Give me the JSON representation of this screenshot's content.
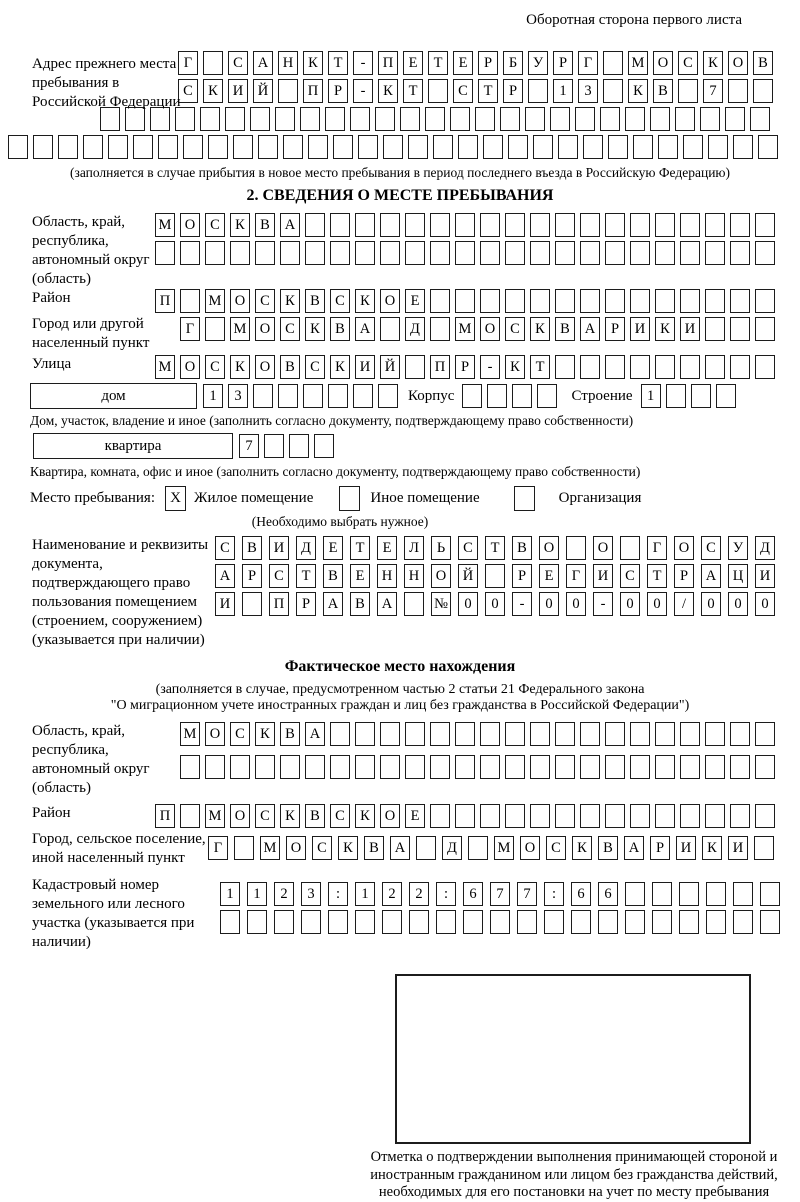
{
  "header": {
    "title": "Оборотная сторона первого листа"
  },
  "prev_address": {
    "label": "Адрес прежнего места пребывания в Российской Федерации",
    "row1": "Г САНКТ-ПЕТЕРБУРГ МОСКОВ",
    "row2": "СКИЙ ПР-КТ СТР 13 КВ 7  ",
    "row3": 27,
    "row4": 31,
    "note": "(заполняется в случае прибытия в новое место пребывания в период последнего въезда в Российскую Федерацию)"
  },
  "section2": {
    "title": "2. СВЕДЕНИЯ О МЕСТЕ ПРЕБЫВАНИЯ",
    "region": {
      "label": "Область, край, республика, автономный округ (область)",
      "row1": "МОСКВА                   ",
      "row2": 25
    },
    "district": {
      "label": "Район",
      "row": "П МОСКВСКОЕ              "
    },
    "city": {
      "label": "Город или другой населенный пункт",
      "row": "Г МОСКВА Д МОСКВАРИКИ   "
    },
    "street": {
      "label": "Улица",
      "row": "МОСКОВСКИЙ ПР-КТ         "
    },
    "house": {
      "box_label": "дом",
      "cells": "13      ",
      "korpus_label": "Корпус",
      "korpus_cells": 4,
      "stroenie_label": "Строение",
      "stroenie_cells": "1   "
    },
    "house_note": "Дом, участок, владение и иное (заполнить согласно документу, подтверждающему право собственности)",
    "apartment": {
      "box_label": "квартира",
      "cells": "7   "
    },
    "apartment_note": "Квартира, комната, офис и иное (заполнить согласно документу, подтверждающему право собственности)",
    "stay_type": {
      "label": "Место пребывания:",
      "options": [
        {
          "label": "Жилое помещение",
          "mark": "X"
        },
        {
          "label": "Иное помещение",
          "mark": ""
        },
        {
          "label": "Организация",
          "mark": ""
        }
      ],
      "note": "(Необходимо выбрать нужное)"
    },
    "doc": {
      "label": "Наименование и реквизиты документа, подтверждающего право пользования помещением (строением, сооружением) (указывается при наличии)",
      "row1": "СВИДЕТЕЛЬСТВО О ГОСУД",
      "row2": "АРСТВЕННОЙ РЕГИСТРАЦИ",
      "row3": "И ПРАВА №00-00-00/000"
    }
  },
  "actual_location": {
    "title": "Фактическое место нахождения",
    "note1": "(заполняется в случае, предусмотренном частью 2 статьи 21 Федерального закона",
    "note2": "\"О миграционном учете иностранных граждан и лиц без гражданства в Российской Федерации\")",
    "region": {
      "label": "Область, край, республика, автономный округ (область)",
      "row1": "МОСКВА                  ",
      "row2": 24
    },
    "district": {
      "label": "Район",
      "row": "П МОСКВСКОЕ              "
    },
    "city": {
      "label": "Город, сельское поселение, иной населенный пункт",
      "row": "Г МОСКВА Д МОСКВАРИКИ "
    },
    "cadastral": {
      "label": "Кадастровый номер земельного или лесного участка (указывается при наличии)",
      "row1": "1123:122:677:66      ",
      "row2": 21
    },
    "stamp_caption": "Отметка о подтверждении выполнения принимающей стороной и иностранным гражданином или лицом без гражданства действий, необходимых для его постановки на учет по месту пребывания"
  }
}
